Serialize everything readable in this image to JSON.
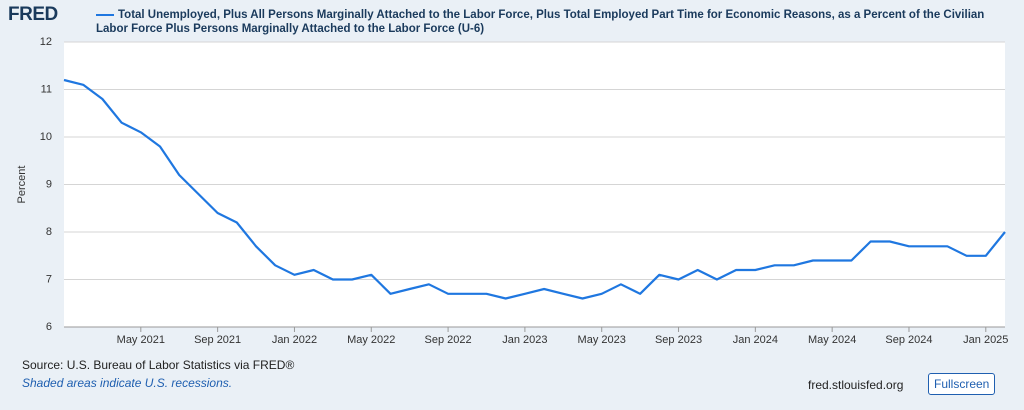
{
  "logo": "FRED",
  "chart_data": {
    "type": "line",
    "series": [
      {
        "name": "Total Unemployed, Plus All Persons Marginally Attached to the Labor Force, Plus Total Employed Part Time for Economic Reasons, as a Percent of the Civilian Labor Force Plus Persons Marginally Attached to the Labor Force (U-6)",
        "color": "#1f77e0",
        "values": [
          11.2,
          11.1,
          10.8,
          10.3,
          10.1,
          9.8,
          9.2,
          8.8,
          8.4,
          8.2,
          7.7,
          7.3,
          7.1,
          7.2,
          7.0,
          7.0,
          7.1,
          6.7,
          6.8,
          6.9,
          6.7,
          6.7,
          6.7,
          6.6,
          6.7,
          6.8,
          6.7,
          6.6,
          6.7,
          6.9,
          6.7,
          7.1,
          7.0,
          7.2,
          7.0,
          7.2,
          7.2,
          7.3,
          7.3,
          7.4,
          7.4,
          7.4,
          7.8,
          7.8,
          7.7,
          7.7,
          7.7,
          7.5,
          7.5,
          8.0
        ]
      }
    ],
    "x": [
      "2021-01",
      "2021-02",
      "2021-03",
      "2021-04",
      "2021-05",
      "2021-06",
      "2021-07",
      "2021-08",
      "2021-09",
      "2021-10",
      "2021-11",
      "2021-12",
      "2022-01",
      "2022-02",
      "2022-03",
      "2022-04",
      "2022-05",
      "2022-06",
      "2022-07",
      "2022-08",
      "2022-09",
      "2022-10",
      "2022-11",
      "2022-12",
      "2023-01",
      "2023-02",
      "2023-03",
      "2023-04",
      "2023-05",
      "2023-06",
      "2023-07",
      "2023-08",
      "2023-09",
      "2023-10",
      "2023-11",
      "2023-12",
      "2024-01",
      "2024-02",
      "2024-03",
      "2024-04",
      "2024-05",
      "2024-06",
      "2024-07",
      "2024-08",
      "2024-09",
      "2024-10",
      "2024-11",
      "2024-12",
      "2025-01",
      "2025-02"
    ],
    "xticks": [
      {
        "value": "2021-05",
        "label": "May 2021"
      },
      {
        "value": "2021-09",
        "label": "Sep 2021"
      },
      {
        "value": "2022-01",
        "label": "Jan 2022"
      },
      {
        "value": "2022-05",
        "label": "May 2022"
      },
      {
        "value": "2022-09",
        "label": "Sep 2022"
      },
      {
        "value": "2023-01",
        "label": "Jan 2023"
      },
      {
        "value": "2023-05",
        "label": "May 2023"
      },
      {
        "value": "2023-09",
        "label": "Sep 2023"
      },
      {
        "value": "2024-01",
        "label": "Jan 2024"
      },
      {
        "value": "2024-05",
        "label": "May 2024"
      },
      {
        "value": "2024-09",
        "label": "Sep 2024"
      },
      {
        "value": "2025-01",
        "label": "Jan 2025"
      }
    ],
    "ylabel": "Percent",
    "ylim": [
      6,
      12
    ],
    "yticks": [
      6,
      7,
      8,
      9,
      10,
      11,
      12
    ],
    "grid": true
  },
  "footer": {
    "source": "Source: U.S. Bureau of Labor Statistics via FRED®",
    "note": "Shaded areas indicate U.S. recessions.",
    "site": "fred.stlouisfed.org",
    "button": "Fullscreen"
  }
}
